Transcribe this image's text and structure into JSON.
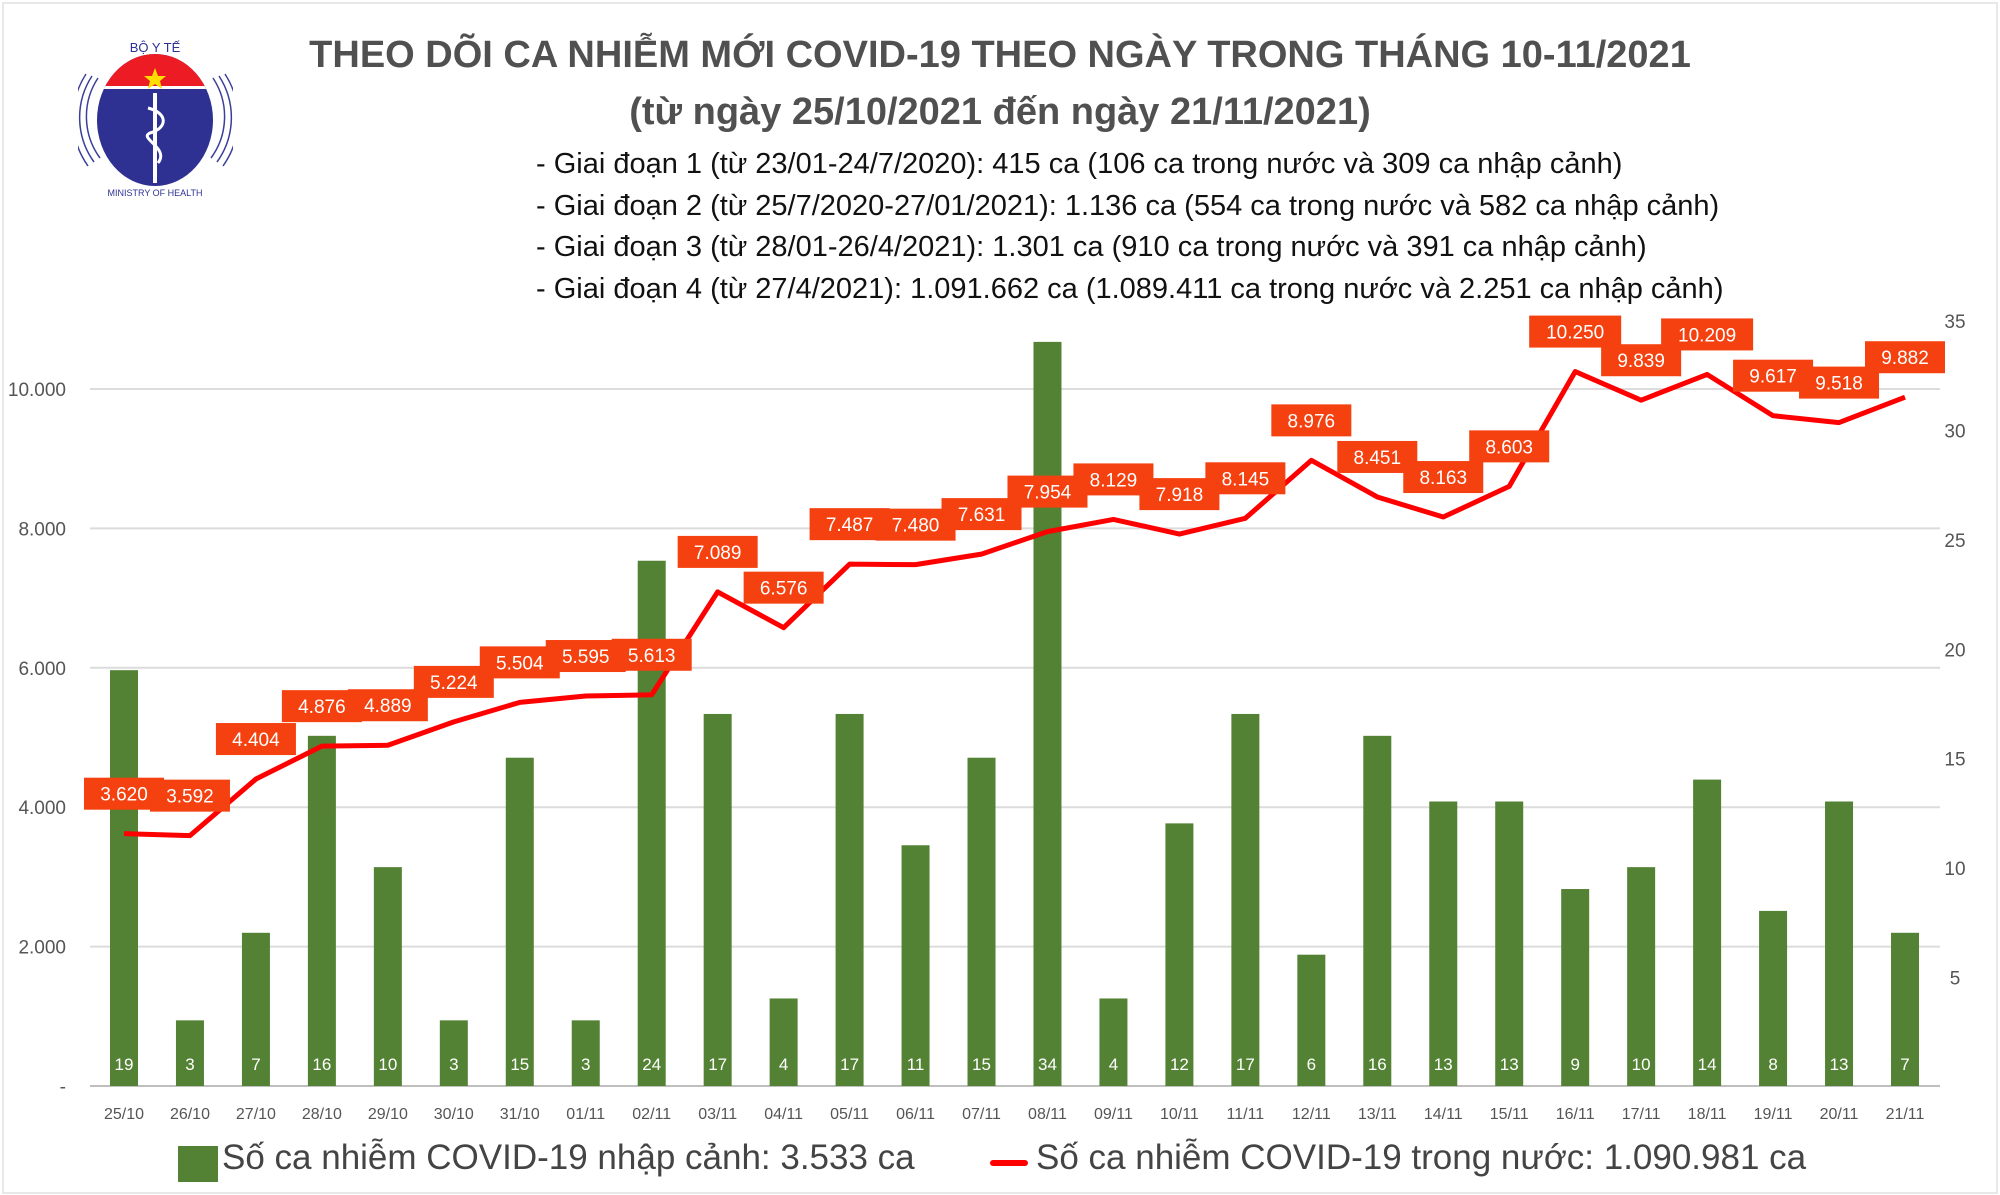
{
  "logo": {
    "top_text": "BỘ Y TẾ",
    "bottom_text": "MINISTRY OF HEALTH"
  },
  "header": {
    "title": "THEO DÕI CA NHIỄM MỚI COVID-19 THEO NGÀY TRONG THÁNG 10-11/2021",
    "subtitle": "(từ ngày 25/10/2021 đến ngày 21/11/2021)",
    "bullets": [
      "- Giai đoạn 1 (từ 23/01-24/7/2020): 415 ca (106 ca trong nước và 309 ca nhập cảnh)",
      "- Giai đoạn 2 (từ 25/7/2020-27/01/2021): 1.136 ca (554 ca trong nước và 582 ca nhập cảnh)",
      "- Giai đoạn 3 (từ 28/01-26/4/2021): 1.301 ca (910 ca trong nước và 391 ca nhập cảnh)",
      "- Giai đoạn 4 (từ 27/4/2021): 1.091.662 ca (1.089.411 ca trong nước và 2.251 ca nhập cảnh)"
    ]
  },
  "chart_data": {
    "type": "bar+line",
    "categories": [
      "25/10",
      "26/10",
      "27/10",
      "28/10",
      "29/10",
      "30/10",
      "31/10",
      "01/11",
      "02/11",
      "03/11",
      "04/11",
      "05/11",
      "06/11",
      "07/11",
      "08/11",
      "09/11",
      "10/11",
      "11/11",
      "12/11",
      "13/11",
      "14/11",
      "15/11",
      "16/11",
      "17/11",
      "18/11",
      "19/11",
      "20/11",
      "21/11"
    ],
    "series": [
      {
        "name": "Số ca nhiễm COVID-19 nhập cảnh: 3.533 ca",
        "type": "bar",
        "axis": "right",
        "color": "#548235",
        "values": [
          19,
          3,
          7,
          16,
          10,
          3,
          15,
          3,
          24,
          17,
          4,
          17,
          11,
          15,
          34,
          4,
          12,
          17,
          6,
          16,
          13,
          13,
          9,
          10,
          14,
          8,
          13,
          7
        ]
      },
      {
        "name": "Số ca nhiễm COVID-19 trong nước: 1.090.981 ca",
        "type": "line",
        "axis": "left",
        "color": "#ff0000",
        "label_color": "#f5400f",
        "values": [
          3620,
          3592,
          4404,
          4876,
          4889,
          5224,
          5504,
          5595,
          5613,
          7089,
          6576,
          7487,
          7480,
          7631,
          7954,
          8129,
          7918,
          8145,
          8976,
          8451,
          8163,
          8603,
          10250,
          9839,
          10209,
          9617,
          9518,
          9882
        ]
      }
    ],
    "left_axis": {
      "ylim": [
        0,
        12000
      ],
      "ticks": [
        0,
        2000,
        4000,
        6000,
        8000,
        10000
      ],
      "tick_labels": [
        "-",
        "2.000",
        "4.000",
        "6.000",
        "8.000",
        "10.000"
      ]
    },
    "right_axis": {
      "ylim": [
        0,
        35
      ],
      "ticks": [
        5,
        10,
        15,
        20,
        25,
        30,
        35
      ],
      "tick_labels": [
        "5",
        "10",
        "15",
        "20",
        "25",
        "30",
        "35"
      ]
    },
    "grid": true,
    "legend_position": "bottom"
  }
}
